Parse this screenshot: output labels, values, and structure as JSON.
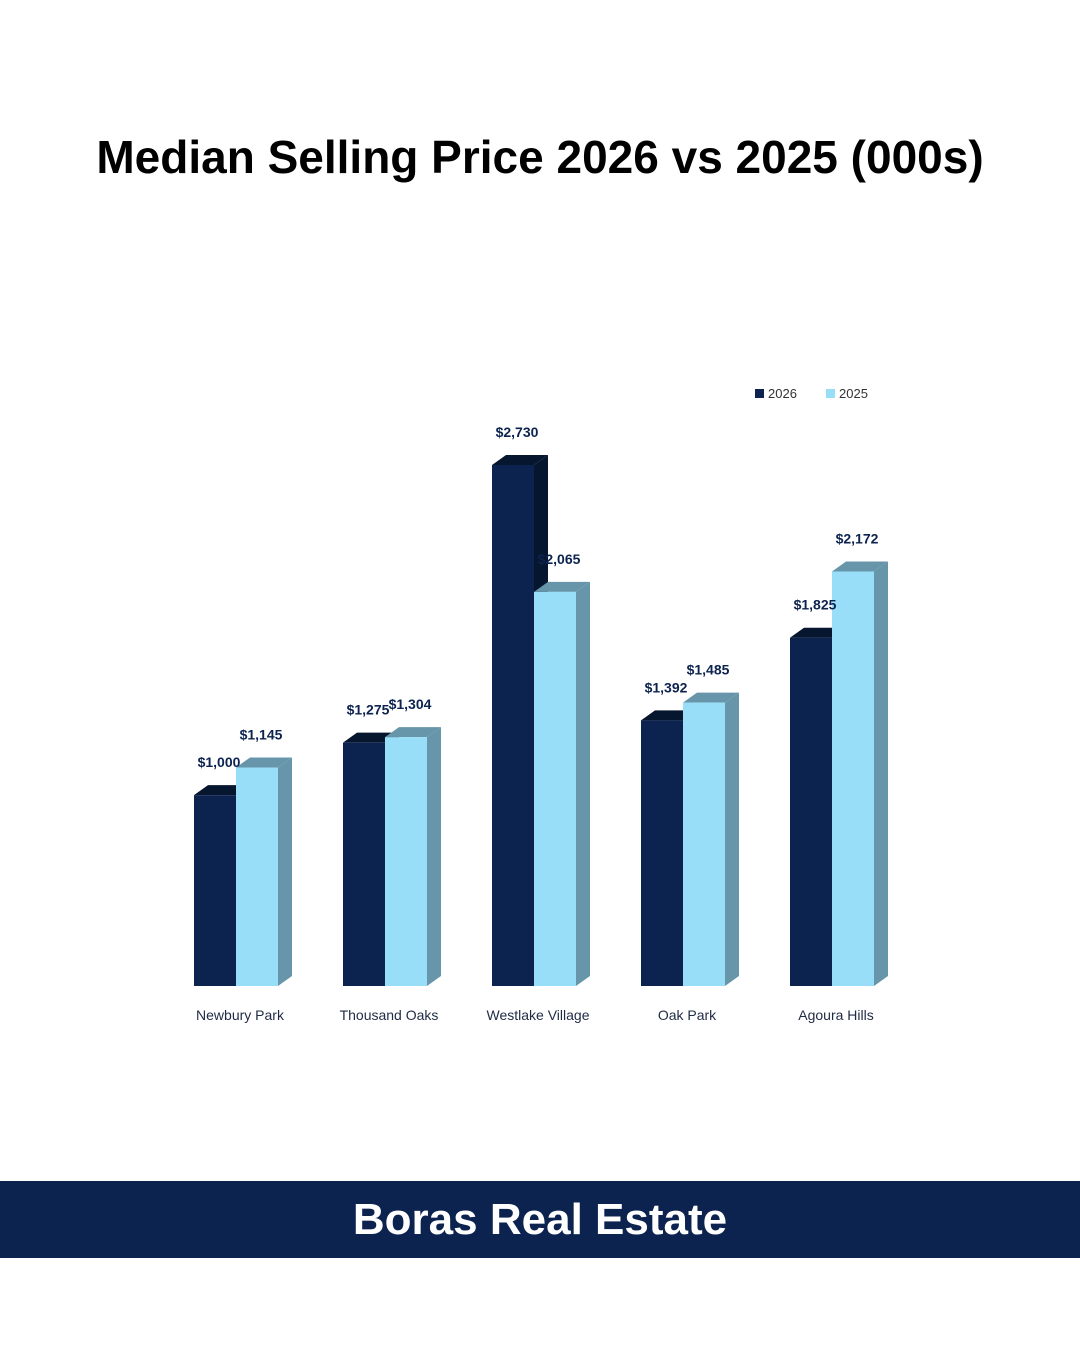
{
  "title": "Median Selling Price 2026 vs 2025 (000s)",
  "footer": "Boras Real Estate",
  "colors": {
    "series_2026": "#0c2350",
    "series_2026_side": "#06162f",
    "series_2025": "#99def8",
    "series_2025_side": "#6796aa",
    "label_text": "#0c2350",
    "banner": "#0c2350"
  },
  "chart_data": {
    "type": "bar",
    "title": "Median Selling Price 2026 vs 2025 (000s)",
    "categories": [
      "Newbury Park",
      "Thousand Oaks",
      "Westlake Village",
      "Oak Park",
      "Agoura Hills"
    ],
    "series": [
      {
        "name": "2026",
        "values": [
          1000,
          1275,
          2730,
          1392,
          1825
        ],
        "labels": [
          "$1,000",
          "$1,275",
          "$2,730",
          "$1,392",
          "$1,825"
        ]
      },
      {
        "name": "2025",
        "values": [
          1145,
          1304,
          2065,
          1485,
          2172
        ],
        "labels": [
          "$1,145",
          "$1,304",
          "$2,065",
          "$1,485",
          "$2,172"
        ]
      }
    ],
    "ylim": [
      0,
      2730
    ],
    "legend": "top-right",
    "grid": false,
    "xlabel": "",
    "ylabel": ""
  }
}
